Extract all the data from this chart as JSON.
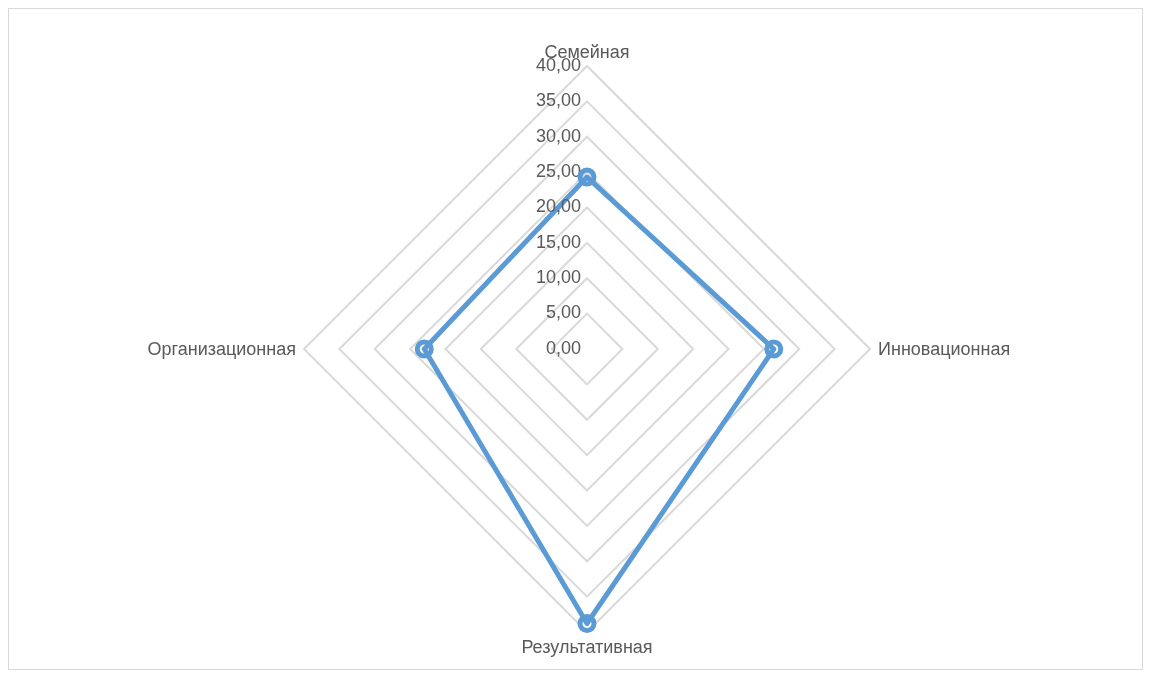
{
  "chart_data": {
    "type": "radar",
    "categories": [
      "Семейная",
      "Инновационная",
      "Результативная",
      "Организационная"
    ],
    "series": [
      {
        "color": "#5b9bd5",
        "values": [
          24.3,
          26.4,
          38.8,
          23.0
        ]
      }
    ],
    "ylim": [
      0,
      40
    ],
    "yticks": [
      {
        "value": 0,
        "label": "0,00"
      },
      {
        "value": 5,
        "label": "5,00"
      },
      {
        "value": 10,
        "label": "10,00"
      },
      {
        "value": 15,
        "label": "15,00"
      },
      {
        "value": 20,
        "label": "20,00"
      },
      {
        "value": 25,
        "label": "25,00"
      },
      {
        "value": 30,
        "label": "30,00"
      },
      {
        "value": 35,
        "label": "35,00"
      },
      {
        "value": 40,
        "label": "40,00"
      }
    ],
    "grid": true,
    "marker": "circle",
    "line_style": "solid"
  }
}
